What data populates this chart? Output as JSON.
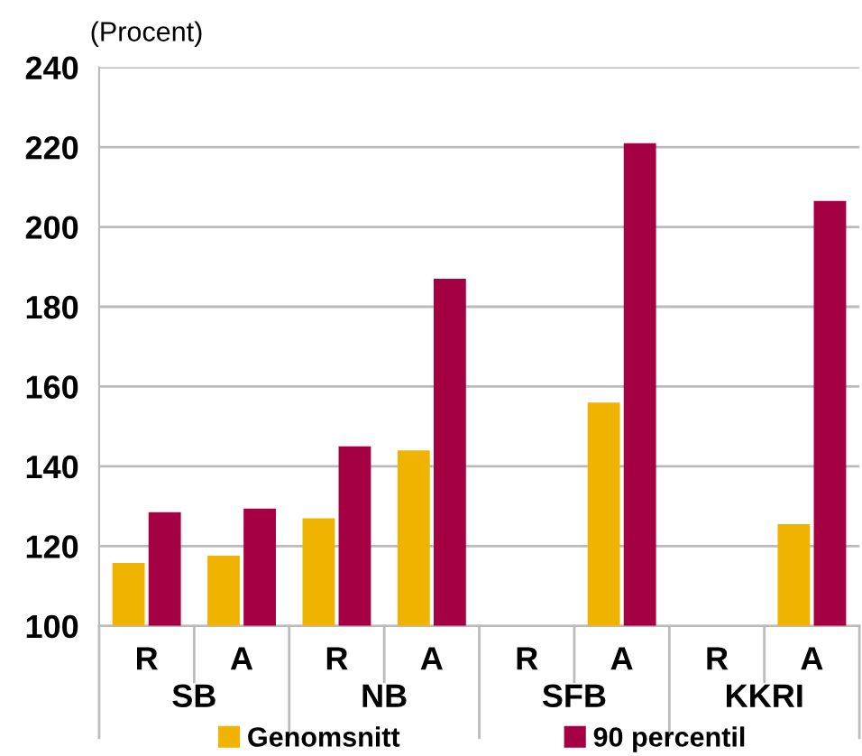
{
  "chart_data": {
    "type": "bar",
    "ylabel": "(Procent)",
    "categories": [
      "R",
      "A",
      "R",
      "A",
      "R",
      "A",
      "R",
      "A"
    ],
    "series": [
      {
        "name": "Genomsnitt",
        "color": "#f0b400",
        "values": [
          115.8,
          117.6,
          127,
          144,
          null,
          156,
          null,
          125.5
        ]
      },
      {
        "name": "90 percentil",
        "color": "#a50044",
        "values": [
          128.5,
          129.4,
          145,
          187,
          null,
          221,
          null,
          206.5
        ]
      }
    ],
    "annotations": [
      "SB",
      "NB",
      "SFB",
      "KKRI"
    ],
    "ylim": [
      100,
      240
    ],
    "yticks": [
      100,
      120,
      140,
      160,
      180,
      200,
      220,
      240
    ],
    "grid": "y",
    "legend": "bottom"
  }
}
